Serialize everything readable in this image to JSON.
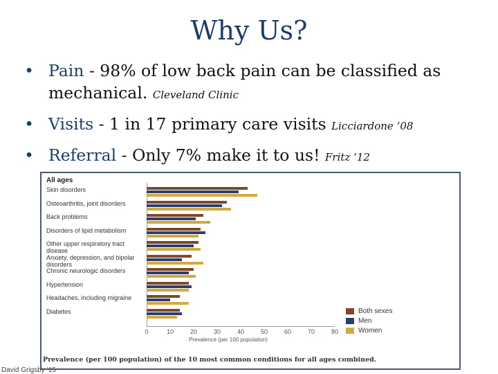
{
  "title": "Why Us?",
  "bullets": [
    {
      "label": "Pain",
      "text": " - 98% of low back pain can be classified as mechanical. ",
      "citation": "Cleveland Clinic"
    },
    {
      "label": "Visits",
      "text": " - 1 in 17 primary care visits ",
      "citation": "Licciardone ‘08"
    },
    {
      "label": "Referral",
      "text": " - Only 7% make it to us! ",
      "citation": "Fritz ‘12"
    }
  ],
  "figure": {
    "caption": "Prevalence (per 100 population) of the 10 most common conditions for all ages combined."
  },
  "footer": {
    "credit": "David Grigsby ’15"
  },
  "colors": {
    "both": "#7a4a2a",
    "men": "#2c3e6b",
    "women": "#d4a840"
  },
  "chart_data": {
    "type": "bar",
    "orientation": "horizontal",
    "group_label": "All ages",
    "categories": [
      "Skin disorders",
      "Osteoarthritis, joint disorders",
      "Back problems",
      "Disorders of lipid metabolism",
      "Other upper respiratory tract disease",
      "Anxiety, depression, and bipolar disorders",
      "Chronic neurologic disorders",
      "Hypertension",
      "Headaches, including migraine",
      "Diabetes"
    ],
    "series": [
      {
        "name": "Both sexes",
        "values": [
          43,
          34,
          24,
          23,
          22,
          19,
          20,
          18,
          14,
          14
        ]
      },
      {
        "name": "Men",
        "values": [
          39,
          32,
          21,
          25,
          20,
          15,
          18,
          19,
          10,
          15
        ]
      },
      {
        "name": "Women",
        "values": [
          47,
          36,
          27,
          22,
          23,
          24,
          21,
          18,
          18,
          13
        ]
      }
    ],
    "xlabel": "Prevalence (per 100 population)",
    "xlim": [
      0,
      80
    ],
    "xticks": [
      "0",
      "10",
      "20",
      "30",
      "40",
      "50",
      "60",
      "70",
      "80"
    ],
    "legend_position": "bottom-right"
  }
}
